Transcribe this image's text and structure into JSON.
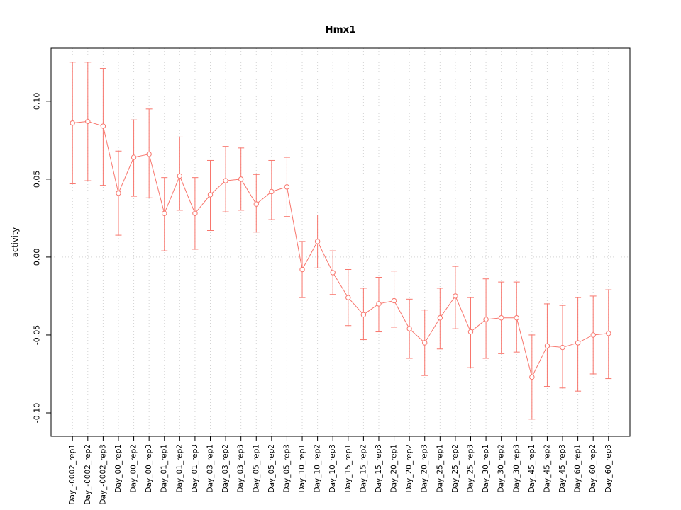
{
  "chart_data": {
    "type": "line",
    "title": "Hmx1",
    "xlabel": "",
    "ylabel": "activity",
    "ylim": [
      -0.115,
      0.134
    ],
    "yticks": [
      -0.1,
      -0.05,
      0.0,
      0.05,
      0.1
    ],
    "ytick_labels": [
      "-0.10",
      "-0.05",
      "0.00",
      "0.05",
      "0.10"
    ],
    "legend": "none",
    "point_style": "open-circle",
    "error_bars": true,
    "series_color": "#F8766D",
    "grid_color": "#d3d3d3",
    "grid": {
      "vertical_dotted_per_category": true,
      "horizontal_dotted_at_zero": true
    },
    "categories": [
      "Day_-0002_rep1",
      "Day_-0002_rep2",
      "Day_-0002_rep3",
      "Day_00_rep1",
      "Day_00_rep2",
      "Day_00_rep3",
      "Day_01_rep1",
      "Day_01_rep2",
      "Day_01_rep3",
      "Day_03_rep1",
      "Day_03_rep2",
      "Day_03_rep3",
      "Day_05_rep1",
      "Day_05_rep2",
      "Day_05_rep3",
      "Day_10_rep1",
      "Day_10_rep2",
      "Day_10_rep3",
      "Day_15_rep1",
      "Day_15_rep2",
      "Day_15_rep3",
      "Day_20_rep1",
      "Day_20_rep2",
      "Day_20_rep3",
      "Day_25_rep1",
      "Day_25_rep2",
      "Day_25_rep3",
      "Day_30_rep1",
      "Day_30_rep2",
      "Day_30_rep3",
      "Day_45_rep1",
      "Day_45_rep2",
      "Day_45_rep3",
      "Day_60_rep1",
      "Day_60_rep2",
      "Day_60_rep3"
    ],
    "series": [
      {
        "name": "activity",
        "values": [
          0.086,
          0.087,
          0.084,
          0.041,
          0.064,
          0.066,
          0.028,
          0.052,
          0.028,
          0.04,
          0.049,
          0.05,
          0.034,
          0.042,
          0.045,
          -0.008,
          0.01,
          -0.01,
          -0.026,
          -0.037,
          -0.03,
          -0.028,
          -0.046,
          -0.055,
          -0.039,
          -0.025,
          -0.048,
          -0.04,
          -0.039,
          -0.039,
          -0.077,
          -0.057,
          -0.058,
          -0.055,
          -0.05,
          -0.049
        ],
        "lower": [
          0.047,
          0.049,
          0.046,
          0.014,
          0.039,
          0.038,
          0.004,
          0.03,
          0.005,
          0.017,
          0.029,
          0.03,
          0.016,
          0.024,
          0.026,
          -0.026,
          -0.007,
          -0.024,
          -0.044,
          -0.053,
          -0.048,
          -0.045,
          -0.065,
          -0.076,
          -0.059,
          -0.046,
          -0.071,
          -0.065,
          -0.062,
          -0.061,
          -0.104,
          -0.083,
          -0.084,
          -0.086,
          -0.075,
          -0.078
        ],
        "upper": [
          0.125,
          0.125,
          0.121,
          0.068,
          0.088,
          0.095,
          0.051,
          0.077,
          0.051,
          0.062,
          0.071,
          0.07,
          0.053,
          0.062,
          0.064,
          0.01,
          0.027,
          0.004,
          -0.008,
          -0.02,
          -0.013,
          -0.009,
          -0.027,
          -0.034,
          -0.02,
          -0.006,
          -0.026,
          -0.014,
          -0.016,
          -0.016,
          -0.05,
          -0.03,
          -0.031,
          -0.026,
          -0.025,
          -0.021
        ]
      }
    ]
  }
}
